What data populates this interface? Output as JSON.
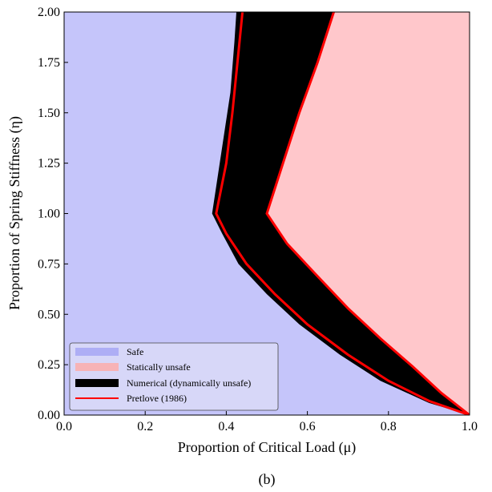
{
  "chart_data": {
    "type": "area",
    "xlabel": "Proportion of Critical Load (μ)",
    "ylabel": "Proportion of Spring Stiffness (η)",
    "xlim": [
      0,
      1.0
    ],
    "ylim": [
      0,
      2.0
    ],
    "xticks": [
      "0.0",
      "0.2",
      "0.4",
      "0.6",
      "0.8",
      "1.0"
    ],
    "yticks": [
      "0.00",
      "0.25",
      "0.50",
      "0.75",
      "1.00",
      "1.25",
      "1.50",
      "1.75",
      "2.00"
    ],
    "caption": "(b)",
    "colors": {
      "safe": "#c5c5fa",
      "unsafe": "#ffc7cb",
      "numerical": "#000000",
      "pretlove": "#ff0000",
      "legend_safe_swatch": "#aeaef5",
      "legend_unsafe_swatch": "#f7b3b6"
    },
    "legend": {
      "placement": "lower-left",
      "entries": [
        {
          "label": "Safe",
          "kind": "patch",
          "color_key": "legend_safe_swatch"
        },
        {
          "label": "Statically unsafe",
          "kind": "patch",
          "color_key": "legend_unsafe_swatch"
        },
        {
          "label": "Numerical (dynamically unsafe)",
          "kind": "patch",
          "color_key": "numerical"
        },
        {
          "label": "Pretlove (1986)",
          "kind": "line",
          "color_key": "pretlove"
        }
      ]
    },
    "series": [
      {
        "name": "Pretlove (1986)",
        "role": "dynamic-boundary",
        "points": [
          [
            0.44,
            2.0
          ],
          [
            0.43,
            1.8
          ],
          [
            0.415,
            1.5
          ],
          [
            0.4,
            1.25
          ],
          [
            0.375,
            1.0
          ],
          [
            0.4,
            0.9
          ],
          [
            0.45,
            0.75
          ],
          [
            0.52,
            0.6
          ],
          [
            0.6,
            0.45
          ],
          [
            0.7,
            0.3
          ],
          [
            0.8,
            0.17
          ],
          [
            0.9,
            0.07
          ],
          [
            1.0,
            0.0
          ]
        ]
      },
      {
        "name": "Pretlove (1986)",
        "role": "static-boundary",
        "points": [
          [
            0.665,
            2.0
          ],
          [
            0.625,
            1.75
          ],
          [
            0.58,
            1.5
          ],
          [
            0.54,
            1.25
          ],
          [
            0.5,
            1.0
          ],
          [
            0.55,
            0.85
          ],
          [
            0.62,
            0.7
          ],
          [
            0.7,
            0.53
          ],
          [
            0.78,
            0.38
          ],
          [
            0.86,
            0.24
          ],
          [
            0.93,
            0.11
          ],
          [
            1.0,
            0.0
          ]
        ]
      },
      {
        "name": "Numerical (dynamically unsafe)",
        "role": "numerical-left-edge",
        "points": [
          [
            0.425,
            2.0
          ],
          [
            0.42,
            1.85
          ],
          [
            0.41,
            1.6
          ],
          [
            0.395,
            1.4
          ],
          [
            0.38,
            1.2
          ],
          [
            0.365,
            1.0
          ],
          [
            0.39,
            0.9
          ],
          [
            0.43,
            0.75
          ],
          [
            0.5,
            0.6
          ],
          [
            0.58,
            0.45
          ],
          [
            0.68,
            0.3
          ],
          [
            0.78,
            0.17
          ],
          [
            0.9,
            0.06
          ],
          [
            1.0,
            0.0
          ]
        ]
      }
    ]
  }
}
